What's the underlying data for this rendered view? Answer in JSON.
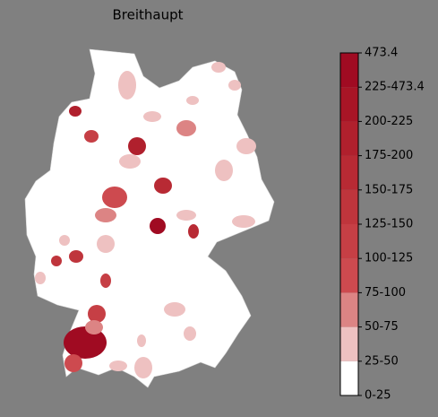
{
  "title": "Breithaupt",
  "colorbar": {
    "labels": [
      "0-25",
      "25-50",
      "50-75",
      "75-100",
      "100-125",
      "125-150",
      "150-175",
      "175-200",
      "200-225",
      "225-473.4",
      "473.4"
    ],
    "colors": [
      "#ffffff",
      "#eec1c1",
      "#dc8484",
      "#cd4a4f",
      "#c63f45",
      "#bf353c",
      "#b82a34",
      "#b0202d",
      "#a81526",
      "#a00b22"
    ]
  }
}
